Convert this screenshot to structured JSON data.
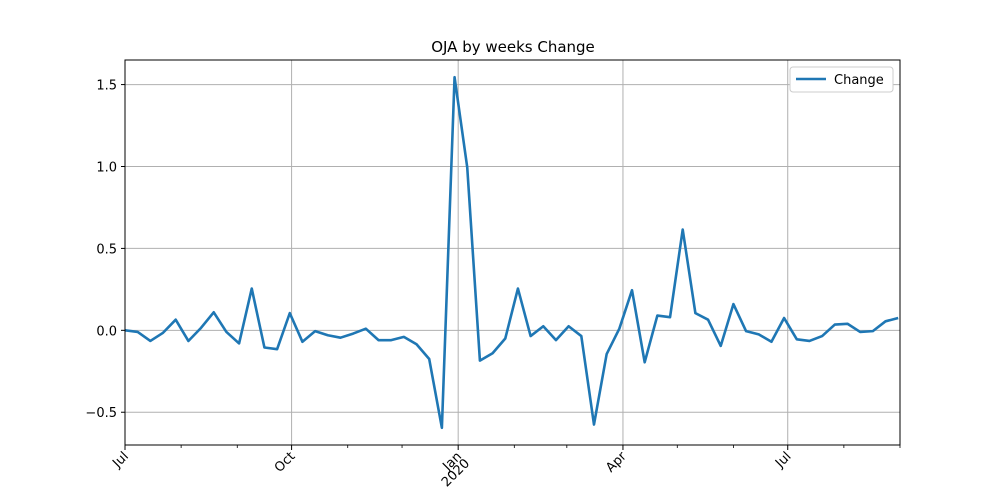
{
  "chart_data": {
    "type": "line",
    "title": "OJA by weeks Change",
    "xlabel": "",
    "ylabel": "",
    "x_axis_kind": "date",
    "x_range": [
      "2019-07-01",
      "2020-09-01"
    ],
    "y_range": [
      -0.7,
      1.65
    ],
    "grid": true,
    "legend_position": "top-right",
    "colors": {
      "series": "#1f77b4",
      "grid": "#b0b0b0"
    },
    "x_ticks": [
      {
        "date": "2019-07-01",
        "label": "Jul",
        "sublabel": ""
      },
      {
        "date": "2019-10-01",
        "label": "Oct",
        "sublabel": ""
      },
      {
        "date": "2020-01-01",
        "label": "Jan",
        "sublabel": "2020"
      },
      {
        "date": "2020-04-01",
        "label": "Apr",
        "sublabel": ""
      },
      {
        "date": "2020-07-01",
        "label": "Jul",
        "sublabel": ""
      }
    ],
    "x_minor_ticks": [
      "2019-08-01",
      "2019-09-01",
      "2019-11-01",
      "2019-12-01",
      "2020-02-01",
      "2020-03-01",
      "2020-05-01",
      "2020-06-01",
      "2020-08-01",
      "2020-09-01"
    ],
    "y_ticks": [
      {
        "value": -0.5,
        "label": "−0.5"
      },
      {
        "value": 0.0,
        "label": "0.0"
      },
      {
        "value": 0.5,
        "label": "0.5"
      },
      {
        "value": 1.0,
        "label": "1.0"
      },
      {
        "value": 1.5,
        "label": "1.5"
      }
    ],
    "series": [
      {
        "name": "Change",
        "x": [
          "2019-07-01",
          "2019-07-08",
          "2019-07-15",
          "2019-07-22",
          "2019-07-29",
          "2019-08-05",
          "2019-08-12",
          "2019-08-19",
          "2019-08-26",
          "2019-09-02",
          "2019-09-09",
          "2019-09-16",
          "2019-09-23",
          "2019-09-30",
          "2019-10-07",
          "2019-10-14",
          "2019-10-21",
          "2019-10-28",
          "2019-11-04",
          "2019-11-11",
          "2019-11-18",
          "2019-11-25",
          "2019-12-02",
          "2019-12-09",
          "2019-12-16",
          "2019-12-23",
          "2019-12-30",
          "2020-01-06",
          "2020-01-13",
          "2020-01-20",
          "2020-01-27",
          "2020-02-03",
          "2020-02-10",
          "2020-02-17",
          "2020-02-24",
          "2020-03-02",
          "2020-03-09",
          "2020-03-16",
          "2020-03-23",
          "2020-03-30",
          "2020-04-06",
          "2020-04-13",
          "2020-04-20",
          "2020-04-27",
          "2020-05-04",
          "2020-05-11",
          "2020-05-18",
          "2020-05-25",
          "2020-06-01",
          "2020-06-08",
          "2020-06-15",
          "2020-06-22",
          "2020-06-29",
          "2020-07-06",
          "2020-07-13",
          "2020-07-20",
          "2020-07-27",
          "2020-08-03",
          "2020-08-10",
          "2020-08-17",
          "2020-08-24",
          "2020-08-31"
        ],
        "values": [
          0.0,
          -0.01,
          -0.065,
          -0.015,
          0.065,
          -0.065,
          0.015,
          0.11,
          -0.01,
          -0.08,
          0.255,
          -0.105,
          -0.115,
          0.105,
          -0.07,
          -0.005,
          -0.03,
          -0.045,
          -0.02,
          0.01,
          -0.06,
          -0.06,
          -0.04,
          -0.085,
          -0.175,
          -0.595,
          1.545,
          0.995,
          -0.185,
          -0.14,
          -0.05,
          0.255,
          -0.035,
          0.025,
          -0.06,
          0.025,
          -0.035,
          -0.575,
          -0.145,
          0.01,
          0.245,
          -0.195,
          0.09,
          0.08,
          0.615,
          0.105,
          0.065,
          -0.095,
          0.16,
          -0.005,
          -0.025,
          -0.07,
          0.075,
          -0.055,
          -0.065,
          -0.035,
          0.035,
          0.04,
          -0.01,
          -0.005,
          0.055,
          0.075
        ]
      }
    ]
  }
}
